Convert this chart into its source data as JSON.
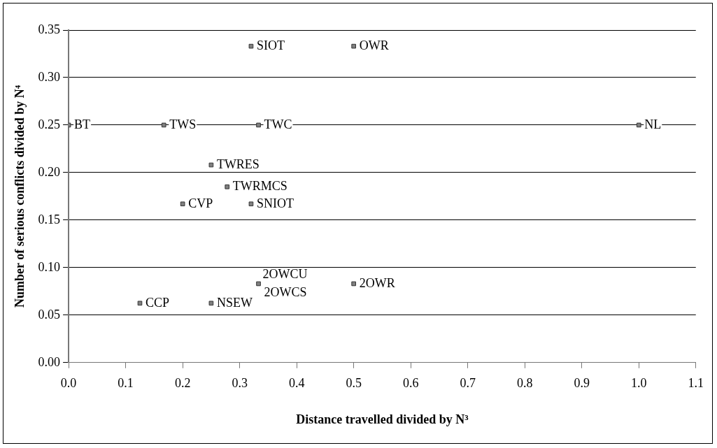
{
  "chart_data": {
    "type": "scatter",
    "xlabel": "Distance travelled divided by N³",
    "ylabel": "Number of serious conflicts divided by N⁴",
    "series": [
      {
        "color": "#808080",
        "x": [
          0,
          0.167,
          0.333,
          1.0,
          0.32,
          0.5,
          0.25,
          0.278,
          0.2,
          0.32,
          0.333,
          0.5,
          0.125,
          0.25
        ],
        "values": [
          0.25,
          0.25,
          0.25,
          0.25,
          0.333,
          0.333,
          0.208,
          0.185,
          0.167,
          0.167,
          0.083,
          0.083,
          0.0625,
          0.0625
        ]
      }
    ],
    "annotations": [
      {
        "text": "BT",
        "x": 0,
        "y": 0.25
      },
      {
        "text": "TWS",
        "x": 0.167,
        "y": 0.25
      },
      {
        "text": "TWC",
        "x": 0.333,
        "y": 0.25
      },
      {
        "text": "NL",
        "x": 1.0,
        "y": 0.25
      },
      {
        "text": "SIOT",
        "x": 0.32,
        "y": 0.333
      },
      {
        "text": "OWR",
        "x": 0.5,
        "y": 0.333
      },
      {
        "text": "TWRES",
        "x": 0.25,
        "y": 0.208
      },
      {
        "text": "TWRMCS",
        "x": 0.278,
        "y": 0.185
      },
      {
        "text": "CVP",
        "x": 0.2,
        "y": 0.167
      },
      {
        "text": "SNIOT",
        "x": 0.32,
        "y": 0.167
      },
      {
        "text": "2OWCU",
        "x": 0.333,
        "y": 0.083
      },
      {
        "text": "2OWCS",
        "x": 0.333,
        "y": 0.083
      },
      {
        "text": "2OWR",
        "x": 0.5,
        "y": 0.083
      },
      {
        "text": "CCP",
        "x": 0.125,
        "y": 0.0625
      },
      {
        "text": "NSEW",
        "x": 0.25,
        "y": 0.0625
      }
    ],
    "xlim": [
      0,
      1.1
    ],
    "xticks": [
      {
        "value": 0,
        "label": "0.0"
      },
      0.1,
      0.2,
      0.3,
      0.4,
      0.5,
      0.6,
      0.7,
      0.8,
      0.9,
      {
        "value": 1,
        "label": "1.0"
      },
      1.1
    ],
    "ylim": [
      0,
      0.35
    ],
    "yticks": [
      {
        "value": 0,
        "label": "0.00"
      },
      0.05,
      {
        "value": 0.1,
        "label": "0.10"
      },
      0.15,
      {
        "value": 0.2,
        "label": "0.20"
      },
      0.25,
      {
        "value": 0.3,
        "label": "0.30"
      },
      0.35
    ],
    "grid": "y",
    "marker": "square",
    "legend": false
  }
}
